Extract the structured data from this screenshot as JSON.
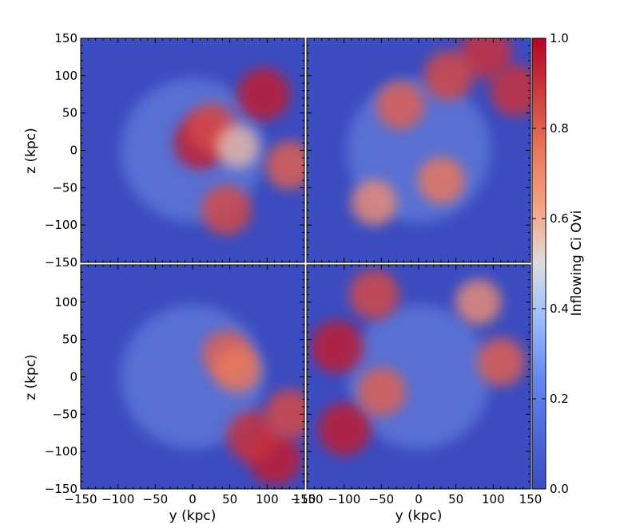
{
  "chart_data": [
    {
      "type": "heatmap",
      "panel": "top-left",
      "xlabel": "",
      "ylabel": "z  (kpc)",
      "xlim": [
        -150,
        150
      ],
      "ylim": [
        -150,
        150
      ],
      "x_ticks": [
        -150,
        -100,
        -50,
        0,
        50,
        100,
        150
      ],
      "y_ticks": [
        -150,
        -100,
        -50,
        0,
        50,
        100,
        150
      ],
      "y_tick_labels": [
        "−150",
        "−100",
        "−50",
        "0",
        "50",
        "100",
        "150"
      ],
      "hotspots": [
        {
          "x": 10,
          "y": 10,
          "value": 0.95
        },
        {
          "x": 25,
          "y": 30,
          "value": 0.85
        },
        {
          "x": 95,
          "y": 75,
          "value": 0.95
        },
        {
          "x": 45,
          "y": -80,
          "value": 0.85
        },
        {
          "x": 130,
          "y": -20,
          "value": 0.8
        },
        {
          "x": 60,
          "y": 5,
          "value": 0.6
        }
      ]
    },
    {
      "type": "heatmap",
      "panel": "top-right",
      "xlabel": "",
      "ylabel": "",
      "xlim": [
        -150,
        150
      ],
      "ylim": [
        -150,
        150
      ],
      "hotspots": [
        {
          "x": 90,
          "y": 130,
          "value": 0.9
        },
        {
          "x": 130,
          "y": 80,
          "value": 0.9
        },
        {
          "x": 40,
          "y": 100,
          "value": 0.85
        },
        {
          "x": -25,
          "y": 60,
          "value": 0.8
        },
        {
          "x": 30,
          "y": -40,
          "value": 0.75
        },
        {
          "x": -60,
          "y": -70,
          "value": 0.7
        }
      ]
    },
    {
      "type": "heatmap",
      "panel": "bottom-left",
      "xlabel": "y  (kpc)",
      "ylabel": "z  (kpc)",
      "xlim": [
        -150,
        150
      ],
      "ylim": [
        -150,
        150
      ],
      "x_tick_labels": [
        "−150",
        "−100",
        "−50",
        "0",
        "50",
        "100",
        "150"
      ],
      "y_tick_labels": [
        "−150",
        "−100",
        "−50",
        "0",
        "50",
        "100",
        ""
      ],
      "hotspots": [
        {
          "x": 110,
          "y": -110,
          "value": 0.95
        },
        {
          "x": 80,
          "y": -80,
          "value": 0.9
        },
        {
          "x": 130,
          "y": -50,
          "value": 0.85
        },
        {
          "x": 45,
          "y": 30,
          "value": 0.8
        },
        {
          "x": 60,
          "y": 10,
          "value": 0.75
        }
      ]
    },
    {
      "type": "heatmap",
      "panel": "bottom-right",
      "xlabel": "y  (kpc)",
      "ylabel": "",
      "xlim": [
        -150,
        150
      ],
      "ylim": [
        -150,
        150
      ],
      "x_tick_labels": [
        "−150",
        "−100",
        "−50",
        "0",
        "50",
        "100",
        "150"
      ],
      "hotspots": [
        {
          "x": -110,
          "y": 40,
          "value": 0.95
        },
        {
          "x": -100,
          "y": -70,
          "value": 0.95
        },
        {
          "x": -60,
          "y": 110,
          "value": 0.85
        },
        {
          "x": -50,
          "y": -20,
          "value": 0.8
        },
        {
          "x": 110,
          "y": 20,
          "value": 0.8
        },
        {
          "x": 80,
          "y": 100,
          "value": 0.7
        }
      ]
    }
  ],
  "colorbar": {
    "label": "Inflowing Ci Ovi",
    "range": [
      0,
      1
    ],
    "ticks": [
      "0.0",
      "0.2",
      "0.4",
      "0.6",
      "0.8",
      "1.0"
    ],
    "colormap": "coolwarm",
    "low_color": "#3b4cc0",
    "mid_color": "#dddddd",
    "high_color": "#b40426"
  }
}
